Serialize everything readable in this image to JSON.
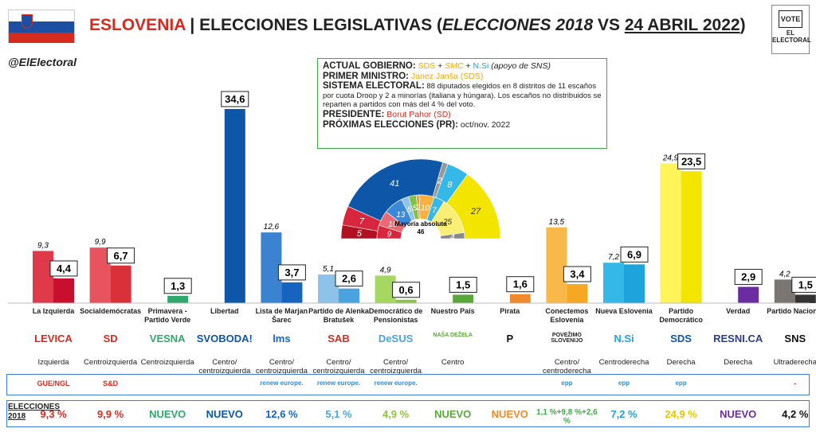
{
  "header": {
    "country": "ESLOVENIA",
    "sep": " | ",
    "title_a": "ELECCIONES LEGISLATIVAS (",
    "title_b": "ELECCIONES 2018",
    "title_c": " VS ",
    "title_d": "24 ABRIL 2022",
    "title_e": ")",
    "handle": "@ElElectoral",
    "logo_top": "VOTE",
    "logo_bottom": "EL ELECTORAL"
  },
  "info": {
    "gov_label": "ACTUAL GOBIERNO:",
    "gov_sds": "SDS",
    "gov_plus1": " + ",
    "gov_smc": "SMC",
    "gov_plus2": " + ",
    "gov_nsi": "N.Si",
    "gov_note": " (apoyo de SNS)",
    "pm_label": "PRIMER MINISTRO:",
    "pm_value": "Janez Janša (SDS)",
    "sys_label": "SISTEMA ELECTORAL:",
    "sys_value": "88 diputados elegidos en 8 distritos de 11 escaños por cuota Droop y 2 a minorías (italiana y húngara). Los escaños no distribuidos se reparten a partidos con más del 4 % del voto.",
    "pres_label": "PRESIDENTE:",
    "pres_value": "Borut Pahor (SD)",
    "next_label": "PRÓXIMAS ELECCIONES (PR):",
    "next_value": "oct/nov. 2022"
  },
  "hemicycle": {
    "majority_label": "Mayoría absoluta",
    "majority_value": "46",
    "outer": [
      {
        "label": "5",
        "color": "#b01020",
        "seats": 5
      },
      {
        "label": "7",
        "color": "#d7263d",
        "seats": 7
      },
      {
        "label": "41",
        "color": "#0d56a8",
        "seats": 41
      },
      {
        "label": "2",
        "color": "#999999",
        "seats": 2
      },
      {
        "label": "8",
        "color": "#33b8e8",
        "seats": 8
      },
      {
        "label": "27",
        "color": "#f4e500",
        "seats": 27
      }
    ],
    "inner": [
      {
        "label": "9",
        "color": "#d7263d",
        "seats": 9
      },
      {
        "label": "10",
        "color": "#e86a72",
        "seats": 10
      },
      {
        "label": "13",
        "color": "#3c88d8",
        "seats": 13
      },
      {
        "label": "5",
        "color": "#8ec3ea",
        "seats": 5
      },
      {
        "label": "5",
        "color": "#7fc241",
        "seats": 5
      },
      {
        "label": "2",
        "color": "#f39a3c",
        "seats": 2
      },
      {
        "label": "10",
        "color": "#f7b13c",
        "seats": 10
      },
      {
        "label": "7",
        "color": "#33b8e8",
        "seats": 7
      },
      {
        "label": "25",
        "color": "#fbee75",
        "seats": 25
      },
      {
        "label": "4",
        "color": "#888888",
        "seats": 4
      }
    ]
  },
  "chart_data": {
    "type": "bar",
    "title": "",
    "ylim": [
      0,
      36
    ],
    "series": [
      {
        "name": "Elecciones 2018",
        "values": [
          9.3,
          9.9,
          null,
          null,
          12.6,
          5.1,
          4.9,
          null,
          null,
          13.5,
          7.2,
          24.9,
          null,
          4.2
        ]
      },
      {
        "name": "24 Abril 2022",
        "values": [
          4.4,
          6.7,
          1.3,
          34.6,
          3.7,
          2.6,
          0.6,
          1.5,
          1.6,
          3.4,
          6.9,
          23.5,
          2.9,
          1.5
        ]
      }
    ],
    "labels_2018": [
      "9,3",
      "9,9",
      "",
      "",
      "12,6",
      "5,1",
      "4,9",
      "",
      "",
      "13,5",
      "7,2",
      "24,9",
      "",
      "4,2"
    ],
    "labels_2022": [
      "4,4",
      "6,7",
      "1,3",
      "34,6",
      "3,7",
      "2,6",
      "0,6",
      "1,5",
      "1,6",
      "3,4",
      "6,9",
      "23,5",
      "2,9",
      "1,5"
    ],
    "categories": [
      "La Izquierda",
      "Socialdemócratas",
      "Primavera - Partido Verde",
      "Libertad",
      "Lista de Marjan Šarec",
      "Partido de Alenka Bratušek",
      "Democrático de Pensionistas",
      "Nuestro País",
      "Pirata",
      "Conectemos Eslovenia",
      "Nueva Eslovenia",
      "Partido Democrático",
      "Verdad",
      "Partido Nacional"
    ],
    "colors_2018": [
      "#e0394a",
      "#e8545e",
      "",
      "",
      "#3b82d0",
      "#8dc3ea",
      "#a6d760",
      "",
      "",
      "#f9b84a",
      "#33b8e8",
      "#fff45a",
      "",
      "#7a7674"
    ],
    "colors_2022": [
      "#c8102e",
      "#d9303a",
      "#2ea86b",
      "#0d56a8",
      "#1565c0",
      "#4aa3df",
      "#8cc63f",
      "#5aa83c",
      "#f08a2c",
      "#f7a823",
      "#1ea3dc",
      "#f4e500",
      "#6a2ca0",
      "#333333"
    ]
  },
  "parties": [
    {
      "logo": "LEVICA",
      "logo_color": "#d52b1e",
      "ideology": "Izquierda",
      "eu": "GUE/NGL",
      "result_2018": "9,3 %",
      "r_color": "#d52b1e"
    },
    {
      "logo": "SD",
      "logo_color": "#d52b1e",
      "ideology": "Centroizquierda",
      "eu": "S&D",
      "result_2018": "9,9 %",
      "r_color": "#d52b1e"
    },
    {
      "logo": "VESNA",
      "logo_color": "#2ea86b",
      "ideology": "Centroizquierda",
      "eu": "",
      "result_2018": "NUEVO",
      "r_color": "#2ea86b"
    },
    {
      "logo": "SVOBODA!",
      "logo_color": "#0d56a8",
      "ideology": "Centro/ centroizquierda",
      "eu": "",
      "result_2018": "NUEVO",
      "r_color": "#0d56a8"
    },
    {
      "logo": "lms",
      "logo_color": "#1565c0",
      "ideology": "Centro/ centroizquierda",
      "eu": "renew europe.",
      "result_2018": "12,6 %",
      "r_color": "#1565c0"
    },
    {
      "logo": "SAB",
      "logo_color": "#d52b1e",
      "ideology": "Centro/ centroizquierda",
      "eu": "renew europe.",
      "result_2018": "5,1 %",
      "r_color": "#4aa3df"
    },
    {
      "logo": "DeSUS",
      "logo_color": "#4aa3df",
      "ideology": "Centro/ centroizquierda",
      "eu": "renew europe.",
      "result_2018": "4,9 %",
      "r_color": "#8cc63f"
    },
    {
      "logo": "NAŠA DEŽELA",
      "logo_color": "#5aa83c",
      "ideology": "Centro",
      "eu": "",
      "result_2018": "NUEVO",
      "r_color": "#5aa83c"
    },
    {
      "logo": "P",
      "logo_color": "#111111",
      "ideology": "",
      "eu": "",
      "result_2018": "NUEVO",
      "r_color": "#f08a2c"
    },
    {
      "logo": "POVEŽIMO SLOVENIJO",
      "logo_color": "#222222",
      "ideology": "Centro/ centroderecha",
      "eu": "epp",
      "result_2018": "1,1 %+9,8 %+2,6 %",
      "r_color": "#3fa84a"
    },
    {
      "logo": "N.Si",
      "logo_color": "#1ea3dc",
      "ideology": "Centroderecha",
      "eu": "epp",
      "result_2018": "7,2 %",
      "r_color": "#1ea3dc"
    },
    {
      "logo": "SDS",
      "logo_color": "#0d56a8",
      "ideology": "Derecha",
      "eu": "epp",
      "result_2018": "24,9 %",
      "r_color": "#e6c800"
    },
    {
      "logo": "RESNI.CA",
      "logo_color": "#2a3e8c",
      "ideology": "Derecha",
      "eu": "",
      "result_2018": "NUEVO",
      "r_color": "#6a2ca0"
    },
    {
      "logo": "SNS",
      "logo_color": "#111111",
      "ideology": "Ultraderecha",
      "eu": "-",
      "result_2018": "4,2 %",
      "r_color": "#111111"
    }
  ],
  "elecciones_row_label": "ELECCIONES 2018",
  "colors": {
    "flag_white": "#ffffff",
    "flag_blue": "#1c4ea1",
    "flag_red": "#d52b1e",
    "accent_green": "#3fa84a",
    "row_border": "#3c7dd8"
  }
}
